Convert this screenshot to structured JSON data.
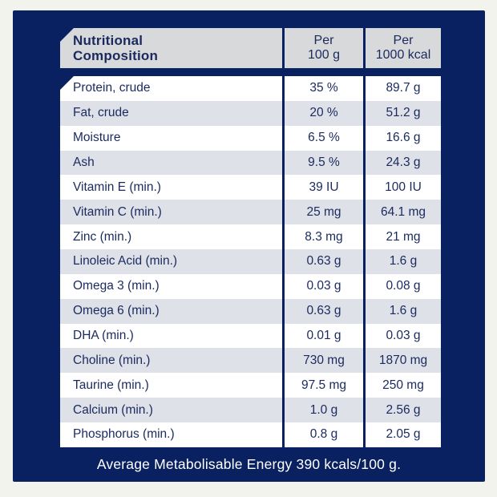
{
  "colors": {
    "panel_navy": "#0A2161",
    "page_bg": "#F3F3EE",
    "header_bg": "#D8D9DA",
    "row_bg": "#FFFFFF",
    "row_alt_bg": "#DFE1E8",
    "text_navy": "#1A2A5E",
    "footer_text": "#FFFFFF"
  },
  "table": {
    "header": {
      "title_line1": "Nutritional",
      "title_line2": "Composition",
      "per100g_line1": "Per",
      "per100g_line2": "100 g",
      "per1000kcal_line1": "Per",
      "per1000kcal_line2": "1000 kcal"
    },
    "rows": [
      {
        "label": "Protein, crude",
        "per_100g": "35 %",
        "per_1000_kcal": "89.7 g"
      },
      {
        "label": "Fat, crude",
        "per_100g": "20 %",
        "per_1000_kcal": "51.2 g"
      },
      {
        "label": "Moisture",
        "per_100g": "6.5 %",
        "per_1000_kcal": "16.6 g"
      },
      {
        "label": "Ash",
        "per_100g": "9.5 %",
        "per_1000_kcal": "24.3 g"
      },
      {
        "label": "Vitamin E (min.)",
        "per_100g": "39 IU",
        "per_1000_kcal": "100 IU"
      },
      {
        "label": "Vitamin C (min.)",
        "per_100g": "25 mg",
        "per_1000_kcal": "64.1 mg"
      },
      {
        "label": "Zinc (min.)",
        "per_100g": "8.3 mg",
        "per_1000_kcal": "21 mg"
      },
      {
        "label": "Linoleic Acid (min.)",
        "per_100g": "0.63 g",
        "per_1000_kcal": "1.6 g"
      },
      {
        "label": "Omega 3 (min.)",
        "per_100g": "0.03 g",
        "per_1000_kcal": "0.08 g"
      },
      {
        "label": "Omega 6 (min.)",
        "per_100g": "0.63 g",
        "per_1000_kcal": "1.6 g"
      },
      {
        "label": "DHA (min.)",
        "per_100g": "0.01 g",
        "per_1000_kcal": "0.03 g"
      },
      {
        "label": "Choline (min.)",
        "per_100g": "730 mg",
        "per_1000_kcal": "1870 mg"
      },
      {
        "label": "Taurine (min.)",
        "per_100g": "97.5 mg",
        "per_1000_kcal": "250 mg"
      },
      {
        "label": "Calcium (min.)",
        "per_100g": "1.0 g",
        "per_1000_kcal": "2.56 g"
      },
      {
        "label": "Phosphorus (min.)",
        "per_100g": "0.8 g",
        "per_1000_kcal": "2.05 g"
      }
    ]
  },
  "footer": {
    "text": "Average Metabolisable Energy 390 kcals/100 g."
  }
}
